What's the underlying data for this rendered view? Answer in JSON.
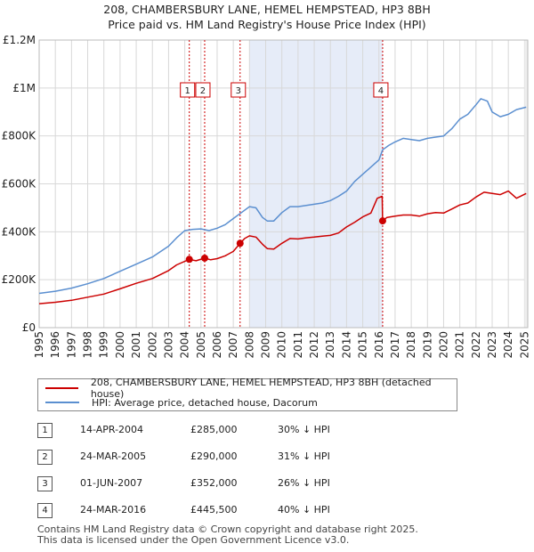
{
  "title_line1": "208, CHAMBERSBURY LANE, HEMEL HEMPSTEAD, HP3 8BH",
  "title_line2": "Price paid vs. HM Land Registry's House Price Index (HPI)",
  "chart_data": {
    "type": "line",
    "xlim": [
      1995,
      2025.2
    ],
    "ylim": [
      0,
      1200000
    ],
    "y_ticks": [
      0,
      200000,
      400000,
      600000,
      800000,
      1000000,
      1200000
    ],
    "y_tick_labels": [
      "£0",
      "£200K",
      "£400K",
      "£600K",
      "£800K",
      "£1M",
      "£1.2M"
    ],
    "x_ticks": [
      1995,
      1996,
      1997,
      1998,
      1999,
      2000,
      2001,
      2002,
      2003,
      2004,
      2005,
      2006,
      2007,
      2008,
      2009,
      2010,
      2011,
      2012,
      2013,
      2014,
      2015,
      2016,
      2017,
      2018,
      2019,
      2020,
      2021,
      2022,
      2023,
      2024,
      2025
    ],
    "shaded_region": [
      2008.0,
      2016.23
    ],
    "series": [
      {
        "name": "208, CHAMBERSBURY LANE, HEMEL HEMPSTEAD, HP3 8BH (detached house)",
        "color": "#cc0000",
        "x": [
          1995,
          1996,
          1997,
          1998,
          1999,
          2000,
          2001,
          2002,
          2003,
          2003.5,
          2004.28,
          2004.7,
          2005.23,
          2005.6,
          2006,
          2006.5,
          2007,
          2007.42,
          2007.7,
          2008,
          2008.4,
          2008.8,
          2009.1,
          2009.5,
          2010,
          2010.5,
          2011,
          2011.5,
          2012,
          2012.5,
          2013,
          2013.5,
          2014,
          2014.5,
          2015,
          2015.5,
          2015.9,
          2016.2,
          2016.23,
          2016.5,
          2017,
          2017.5,
          2018,
          2018.5,
          2019,
          2019.5,
          2020,
          2020.5,
          2021,
          2021.5,
          2022,
          2022.5,
          2023,
          2023.5,
          2024,
          2024.5,
          2025.1
        ],
        "values": [
          100000,
          106000,
          114000,
          127000,
          140000,
          162000,
          185000,
          205000,
          238000,
          262000,
          285000,
          279000,
          290000,
          283000,
          288000,
          300000,
          318000,
          352000,
          372000,
          383000,
          378000,
          348000,
          330000,
          328000,
          352000,
          372000,
          370000,
          375000,
          378000,
          382000,
          385000,
          395000,
          420000,
          440000,
          462000,
          478000,
          540000,
          548000,
          445500,
          460000,
          465000,
          470000,
          470000,
          465000,
          475000,
          480000,
          478000,
          495000,
          512000,
          520000,
          545000,
          565000,
          560000,
          555000,
          570000,
          540000,
          560000
        ]
      },
      {
        "name": "HPI: Average price, detached house, Dacorum",
        "color": "#5b8fd0",
        "x": [
          1995,
          1996,
          1997,
          1998,
          1999,
          2000,
          2001,
          2002,
          2003,
          2003.5,
          2004,
          2004.5,
          2005,
          2005.5,
          2006,
          2006.5,
          2007,
          2007.5,
          2008,
          2008.4,
          2008.8,
          2009.1,
          2009.5,
          2010,
          2010.5,
          2011,
          2011.5,
          2012,
          2012.5,
          2013,
          2013.5,
          2014,
          2014.5,
          2015,
          2015.5,
          2016,
          2016.23,
          2016.6,
          2017,
          2017.5,
          2018,
          2018.5,
          2019,
          2019.5,
          2020,
          2020.5,
          2021,
          2021.5,
          2022,
          2022.3,
          2022.7,
          2023,
          2023.5,
          2024,
          2024.5,
          2025.1
        ],
        "values": [
          143000,
          152000,
          165000,
          183000,
          205000,
          235000,
          265000,
          295000,
          340000,
          375000,
          405000,
          410000,
          412000,
          405000,
          415000,
          430000,
          455000,
          480000,
          505000,
          500000,
          460000,
          445000,
          445000,
          480000,
          505000,
          505000,
          510000,
          515000,
          520000,
          530000,
          548000,
          570000,
          610000,
          640000,
          670000,
          700000,
          742000,
          760000,
          775000,
          790000,
          785000,
          780000,
          790000,
          795000,
          800000,
          830000,
          870000,
          890000,
          930000,
          955000,
          945000,
          900000,
          880000,
          890000,
          910000,
          920000
        ]
      }
    ],
    "sales": [
      {
        "label": "1",
        "x": 2004.28,
        "y": 285000
      },
      {
        "label": "2",
        "x": 2005.23,
        "y": 290000
      },
      {
        "label": "3",
        "x": 2007.42,
        "y": 352000
      },
      {
        "label": "4",
        "x": 2016.23,
        "y": 445500
      }
    ]
  },
  "legend": {
    "property_label": "208, CHAMBERSBURY LANE, HEMEL HEMPSTEAD, HP3 8BH (detached house)",
    "hpi_label": "HPI: Average price, detached house, Dacorum"
  },
  "transactions": [
    {
      "num": "1",
      "date": "14-APR-2004",
      "price": "£285,000",
      "hpi": "30% ↓ HPI"
    },
    {
      "num": "2",
      "date": "24-MAR-2005",
      "price": "£290,000",
      "hpi": "31% ↓ HPI"
    },
    {
      "num": "3",
      "date": "01-JUN-2007",
      "price": "£352,000",
      "hpi": "26% ↓ HPI"
    },
    {
      "num": "4",
      "date": "24-MAR-2016",
      "price": "£445,500",
      "hpi": "40% ↓ HPI"
    }
  ],
  "footer_line1": "Contains HM Land Registry data © Crown copyright and database right 2025.",
  "footer_line2": "This data is licensed under the Open Government Licence v3.0."
}
